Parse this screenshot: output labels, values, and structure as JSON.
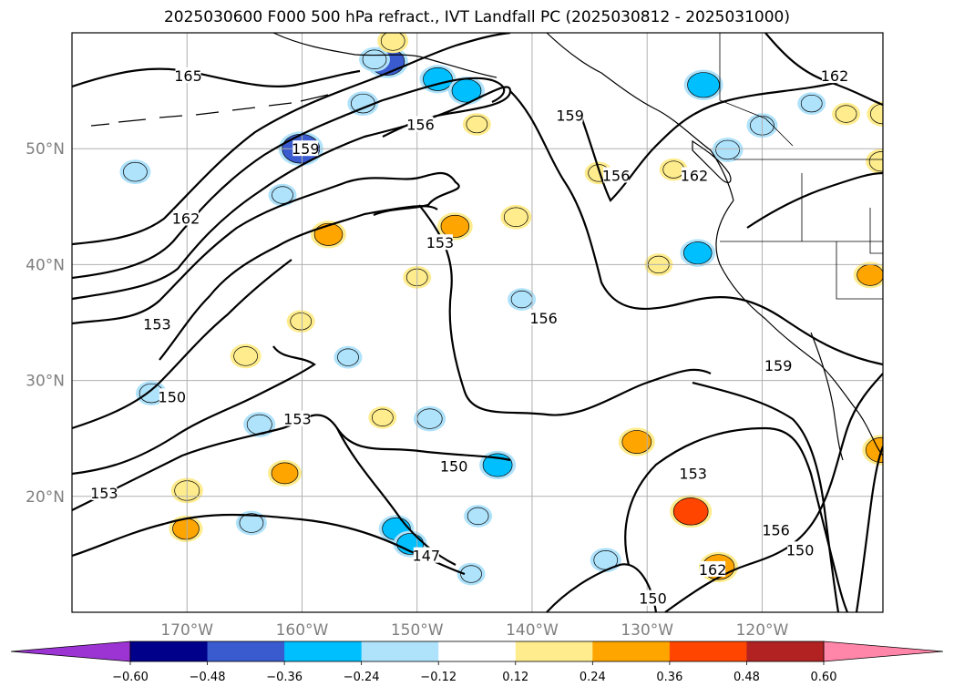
{
  "title": "2025030600 F000 500 hPa refract., IVT Landfall PC (2025030812 - 2025031000)",
  "map": {
    "lon_ticks": [
      {
        "lon": -170,
        "label": "170°W"
      },
      {
        "lon": -160,
        "label": "160°W"
      },
      {
        "lon": -150,
        "label": "150°W"
      },
      {
        "lon": -140,
        "label": "140°W"
      },
      {
        "lon": -130,
        "label": "130°W"
      },
      {
        "lon": -120,
        "label": "120°W"
      }
    ],
    "lat_ticks": [
      {
        "lat": 50,
        "label": "50°N"
      },
      {
        "lat": 40,
        "label": "40°N"
      },
      {
        "lat": 30,
        "label": "30°N"
      },
      {
        "lat": 20,
        "label": "20°N"
      }
    ],
    "contour_labels": [
      {
        "text": "165",
        "lon": -169.9,
        "lat": 56.3
      },
      {
        "text": "156",
        "lon": -149.7,
        "lat": 52.1
      },
      {
        "text": "159",
        "lon": -159.7,
        "lat": 50.0
      },
      {
        "text": "162",
        "lon": -170.1,
        "lat": 44.0
      },
      {
        "text": "153",
        "lon": -148.0,
        "lat": 41.9
      },
      {
        "text": "159",
        "lon": -136.7,
        "lat": 52.9
      },
      {
        "text": "156",
        "lon": -132.7,
        "lat": 47.7
      },
      {
        "text": "162",
        "lon": -125.9,
        "lat": 47.7
      },
      {
        "text": "162",
        "lon": -113.7,
        "lat": 56.3
      },
      {
        "text": "156",
        "lon": -139.0,
        "lat": 35.4
      },
      {
        "text": "159",
        "lon": -118.6,
        "lat": 31.3
      },
      {
        "text": "153",
        "lon": -172.6,
        "lat": 34.9
      },
      {
        "text": "150",
        "lon": -171.3,
        "lat": 28.6
      },
      {
        "text": "153",
        "lon": -160.4,
        "lat": 26.7
      },
      {
        "text": "150",
        "lon": -146.8,
        "lat": 22.6
      },
      {
        "text": "153",
        "lon": -177.2,
        "lat": 20.3
      },
      {
        "text": "153",
        "lon": -126.0,
        "lat": 22.0
      },
      {
        "text": "147",
        "lon": -149.2,
        "lat": 14.9
      },
      {
        "text": "156",
        "lon": -118.8,
        "lat": 17.1
      },
      {
        "text": "150",
        "lon": -116.7,
        "lat": 15.4
      },
      {
        "text": "162",
        "lon": -124.3,
        "lat": 13.7
      },
      {
        "text": "150",
        "lon": -129.5,
        "lat": 11.2
      }
    ],
    "shaded_cells": [
      {
        "lon": -160.1,
        "lat": 50.0,
        "value": -0.45
      },
      {
        "lon": -152.6,
        "lat": 57.5,
        "value": -0.4
      },
      {
        "lon": -148.2,
        "lat": 56.0,
        "value": -0.3
      },
      {
        "lon": -125.1,
        "lat": 55.5,
        "value": -0.35
      },
      {
        "lon": -145.7,
        "lat": 55.0,
        "value": -0.3
      },
      {
        "lon": -154.7,
        "lat": 53.9,
        "value": -0.2
      },
      {
        "lon": -123.0,
        "lat": 49.9,
        "value": -0.2
      },
      {
        "lon": -125.6,
        "lat": 41.0,
        "value": -0.28
      },
      {
        "lon": -148.9,
        "lat": 26.7,
        "value": -0.22
      },
      {
        "lon": -163.7,
        "lat": 26.2,
        "value": -0.22
      },
      {
        "lon": -143.0,
        "lat": 22.7,
        "value": -0.3
      },
      {
        "lon": -151.8,
        "lat": 17.2,
        "value": -0.28
      },
      {
        "lon": -150.6,
        "lat": 15.9,
        "value": -0.25
      },
      {
        "lon": -164.4,
        "lat": 17.7,
        "value": -0.2
      },
      {
        "lon": -144.7,
        "lat": 18.3,
        "value": -0.15
      },
      {
        "lon": -133.6,
        "lat": 14.5,
        "value": -0.2
      },
      {
        "lon": -145.3,
        "lat": 13.3,
        "value": -0.15
      },
      {
        "lon": -140.9,
        "lat": 37.0,
        "value": -0.15
      },
      {
        "lon": -156.0,
        "lat": 32.0,
        "value": -0.15
      },
      {
        "lon": -153.7,
        "lat": 57.7,
        "value": -0.2
      },
      {
        "lon": -161.7,
        "lat": 46.0,
        "value": -0.15
      },
      {
        "lon": -174.5,
        "lat": 48.0,
        "value": -0.2
      },
      {
        "lon": -120.0,
        "lat": 52.0,
        "value": -0.2
      },
      {
        "lon": -115.7,
        "lat": 53.9,
        "value": -0.15
      },
      {
        "lon": -173.1,
        "lat": 28.9,
        "value": -0.2
      },
      {
        "lon": -130.9,
        "lat": 24.7,
        "value": 0.3
      },
      {
        "lon": -126.2,
        "lat": 18.7,
        "value": 0.4
      },
      {
        "lon": -109.6,
        "lat": 24.0,
        "value": 0.35
      },
      {
        "lon": -161.5,
        "lat": 22.0,
        "value": 0.25
      },
      {
        "lon": -146.7,
        "lat": 43.3,
        "value": 0.28
      },
      {
        "lon": -157.7,
        "lat": 42.6,
        "value": 0.28
      },
      {
        "lon": -110.6,
        "lat": 39.1,
        "value": 0.25
      },
      {
        "lon": -109.6,
        "lat": 48.9,
        "value": 0.22
      },
      {
        "lon": -109.5,
        "lat": 53.0,
        "value": 0.22
      },
      {
        "lon": -170.0,
        "lat": 20.5,
        "value": 0.22
      },
      {
        "lon": -141.4,
        "lat": 44.1,
        "value": 0.2
      },
      {
        "lon": -123.8,
        "lat": 13.9,
        "value": 0.35
      },
      {
        "lon": -170.1,
        "lat": 17.2,
        "value": 0.25
      },
      {
        "lon": -152.1,
        "lat": 59.3,
        "value": 0.2
      },
      {
        "lon": -164.9,
        "lat": 32.1,
        "value": 0.2
      },
      {
        "lon": -153.0,
        "lat": 26.8,
        "value": 0.15
      },
      {
        "lon": -112.7,
        "lat": 53.0,
        "value": 0.15
      },
      {
        "lon": -127.7,
        "lat": 48.2,
        "value": 0.15
      },
      {
        "lon": -134.2,
        "lat": 47.9,
        "value": 0.15
      },
      {
        "lon": -150.0,
        "lat": 38.9,
        "value": 0.15
      },
      {
        "lon": -160.1,
        "lat": 35.1,
        "value": 0.15
      },
      {
        "lon": -144.8,
        "lat": 52.1,
        "value": 0.15
      },
      {
        "lon": -129.0,
        "lat": 40.0,
        "value": 0.15
      }
    ]
  },
  "colorbar": {
    "ticks": [
      "−0.60",
      "−0.48",
      "−0.36",
      "−0.24",
      "−0.12",
      "0.12",
      "0.24",
      "0.36",
      "0.48",
      "0.60"
    ],
    "under_color": "#9b34d3",
    "over_color": "#ff85a9",
    "colors": [
      "#9b34d3",
      "#00008b",
      "#3a5bd0",
      "#00bfff",
      "#afe2fb",
      "#ffffff",
      "#feec8d",
      "#ffa500",
      "#ff4500",
      "#b22222",
      "#ff85a9"
    ]
  }
}
